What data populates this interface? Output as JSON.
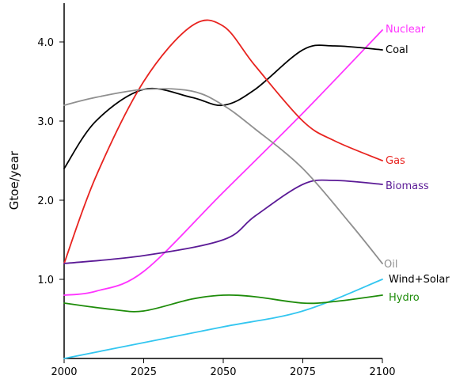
{
  "chart_data": {
    "type": "line",
    "title": "",
    "xlabel": "",
    "ylabel": "Gtoe/year",
    "xlim": [
      2000,
      2100
    ],
    "ylim": [
      0,
      4.0
    ],
    "x_ticks": [
      "2000",
      "2025",
      "2050",
      "2075",
      "2100"
    ],
    "y_ticks": [
      "1.0",
      "2.0",
      "3.0",
      "4.0"
    ],
    "grid": false,
    "legend": "series labels at right end of lines",
    "series": [
      {
        "name": "Nuclear",
        "color": "#ff33ff",
        "x": [
          2000,
          2010,
          2025,
          2050,
          2075,
          2100
        ],
        "y": [
          0.8,
          0.85,
          1.1,
          2.1,
          3.1,
          4.15
        ]
      },
      {
        "name": "Coal",
        "color": "#000000",
        "x": [
          2000,
          2010,
          2025,
          2040,
          2050,
          2060,
          2075,
          2085,
          2100
        ],
        "y": [
          2.4,
          3.0,
          3.4,
          3.3,
          3.2,
          3.4,
          3.9,
          3.95,
          3.9
        ]
      },
      {
        "name": "Gas",
        "color": "#e8231f",
        "x": [
          2000,
          2010,
          2025,
          2040,
          2050,
          2060,
          2075,
          2085,
          2100
        ],
        "y": [
          1.2,
          2.3,
          3.5,
          4.2,
          4.2,
          3.7,
          3.0,
          2.75,
          2.5
        ]
      },
      {
        "name": "Biomass",
        "color": "#5b1a96",
        "x": [
          2000,
          2025,
          2050,
          2060,
          2075,
          2085,
          2100
        ],
        "y": [
          1.2,
          1.3,
          1.5,
          1.8,
          2.2,
          2.25,
          2.2
        ]
      },
      {
        "name": "Oil",
        "color": "#8f8f8f",
        "x": [
          2000,
          2010,
          2025,
          2040,
          2050,
          2060,
          2075,
          2090,
          2100
        ],
        "y": [
          3.2,
          3.3,
          3.4,
          3.38,
          3.2,
          2.9,
          2.4,
          1.7,
          1.2
        ]
      },
      {
        "name": "Wind+Solar",
        "color": "#33c6f0",
        "x": [
          2000,
          2025,
          2050,
          2075,
          2100
        ],
        "y": [
          0.0,
          0.2,
          0.4,
          0.6,
          1.0
        ]
      },
      {
        "name": "Hydro",
        "color": "#1e8c0a",
        "x": [
          2000,
          2015,
          2025,
          2040,
          2050,
          2060,
          2075,
          2085,
          2100
        ],
        "y": [
          0.7,
          0.62,
          0.6,
          0.75,
          0.8,
          0.78,
          0.7,
          0.72,
          0.8
        ]
      }
    ]
  }
}
